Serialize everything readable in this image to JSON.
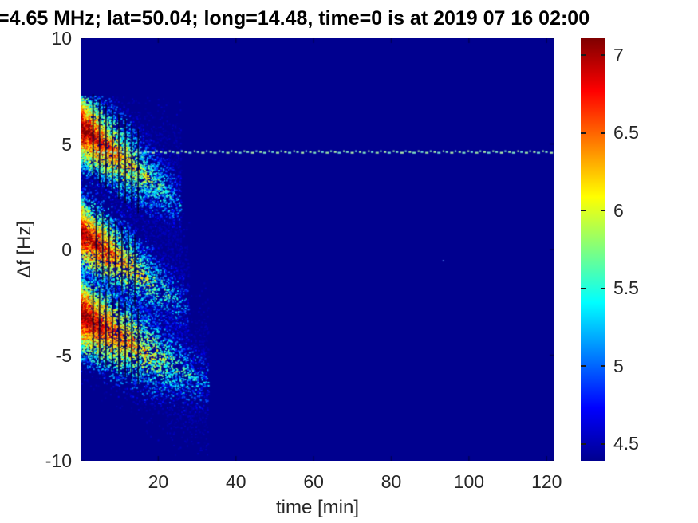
{
  "title": "=4.65 MHz;  lat=50.04; long=14.48, time=0 is at 2019 07 16 02:00",
  "chart_data": {
    "type": "heatmap",
    "subtype": "spectrogram-scatter",
    "title": "=4.65 MHz;  lat=50.04; long=14.48, time=0 is at 2019 07 16 02:00",
    "xlabel": "time [min]",
    "ylabel": "Δf [Hz]",
    "xlim": [
      0,
      122
    ],
    "ylim": [
      -10,
      10
    ],
    "xticks": [
      20,
      40,
      60,
      80,
      100,
      120
    ],
    "yticks": [
      10,
      5,
      0,
      -5,
      -10
    ],
    "grid": false,
    "background_value_color": "#00008f",
    "colorbar": {
      "position": "right",
      "range": [
        4.39,
        7.11
      ],
      "ticks": [
        7,
        6.5,
        6,
        5.5,
        5,
        4.5
      ],
      "colormap": "jet",
      "stops": [
        "#00008f",
        "#0000ff",
        "#007fff",
        "#00ffff",
        "#7fff7f",
        "#ffff00",
        "#ff7f00",
        "#ff0000",
        "#7f0000"
      ]
    },
    "horizontal_line": {
      "comment": "dashed pale-green carrier line at constant frequency offset",
      "delta_f": 4.62,
      "t_start": 3.5,
      "t_end": 122,
      "style": "dashed",
      "colors": [
        "#9fe8a0",
        "#84e4c4",
        "#b2f0a6",
        "#74dcd4"
      ]
    },
    "blobs": [
      {
        "name": "upper-echo",
        "t0": 0,
        "f0": 5.8,
        "slope": -0.14,
        "halo_len": 26,
        "sigma_f": 0.95,
        "vmax": 7.1,
        "count": 5200,
        "seed": 101,
        "dark_lines": {
          "t_start": 3.2,
          "t_step": 1.66,
          "count": 8,
          "half_f": 2.0
        }
      },
      {
        "name": "middle-echo",
        "t0": 0,
        "f0": 0.8,
        "slope": -0.13,
        "halo_len": 28,
        "sigma_f": 0.95,
        "vmax": 7.05,
        "count": 4600,
        "seed": 202,
        "dark_lines": {
          "t_start": 4.0,
          "t_step": 1.66,
          "count": 7,
          "half_f": 1.7
        }
      },
      {
        "name": "lower-echo",
        "t0": 0,
        "f0": -3.1,
        "slope": -0.1,
        "halo_len": 33,
        "sigma_f": 1.0,
        "vmax": 7.1,
        "count": 5200,
        "seed": 303,
        "dark_lines": {
          "t_start": 3.2,
          "t_step": 1.66,
          "count": 8,
          "half_f": 1.8
        }
      }
    ],
    "specks": [
      [
        93.4,
        -0.53
      ]
    ]
  }
}
